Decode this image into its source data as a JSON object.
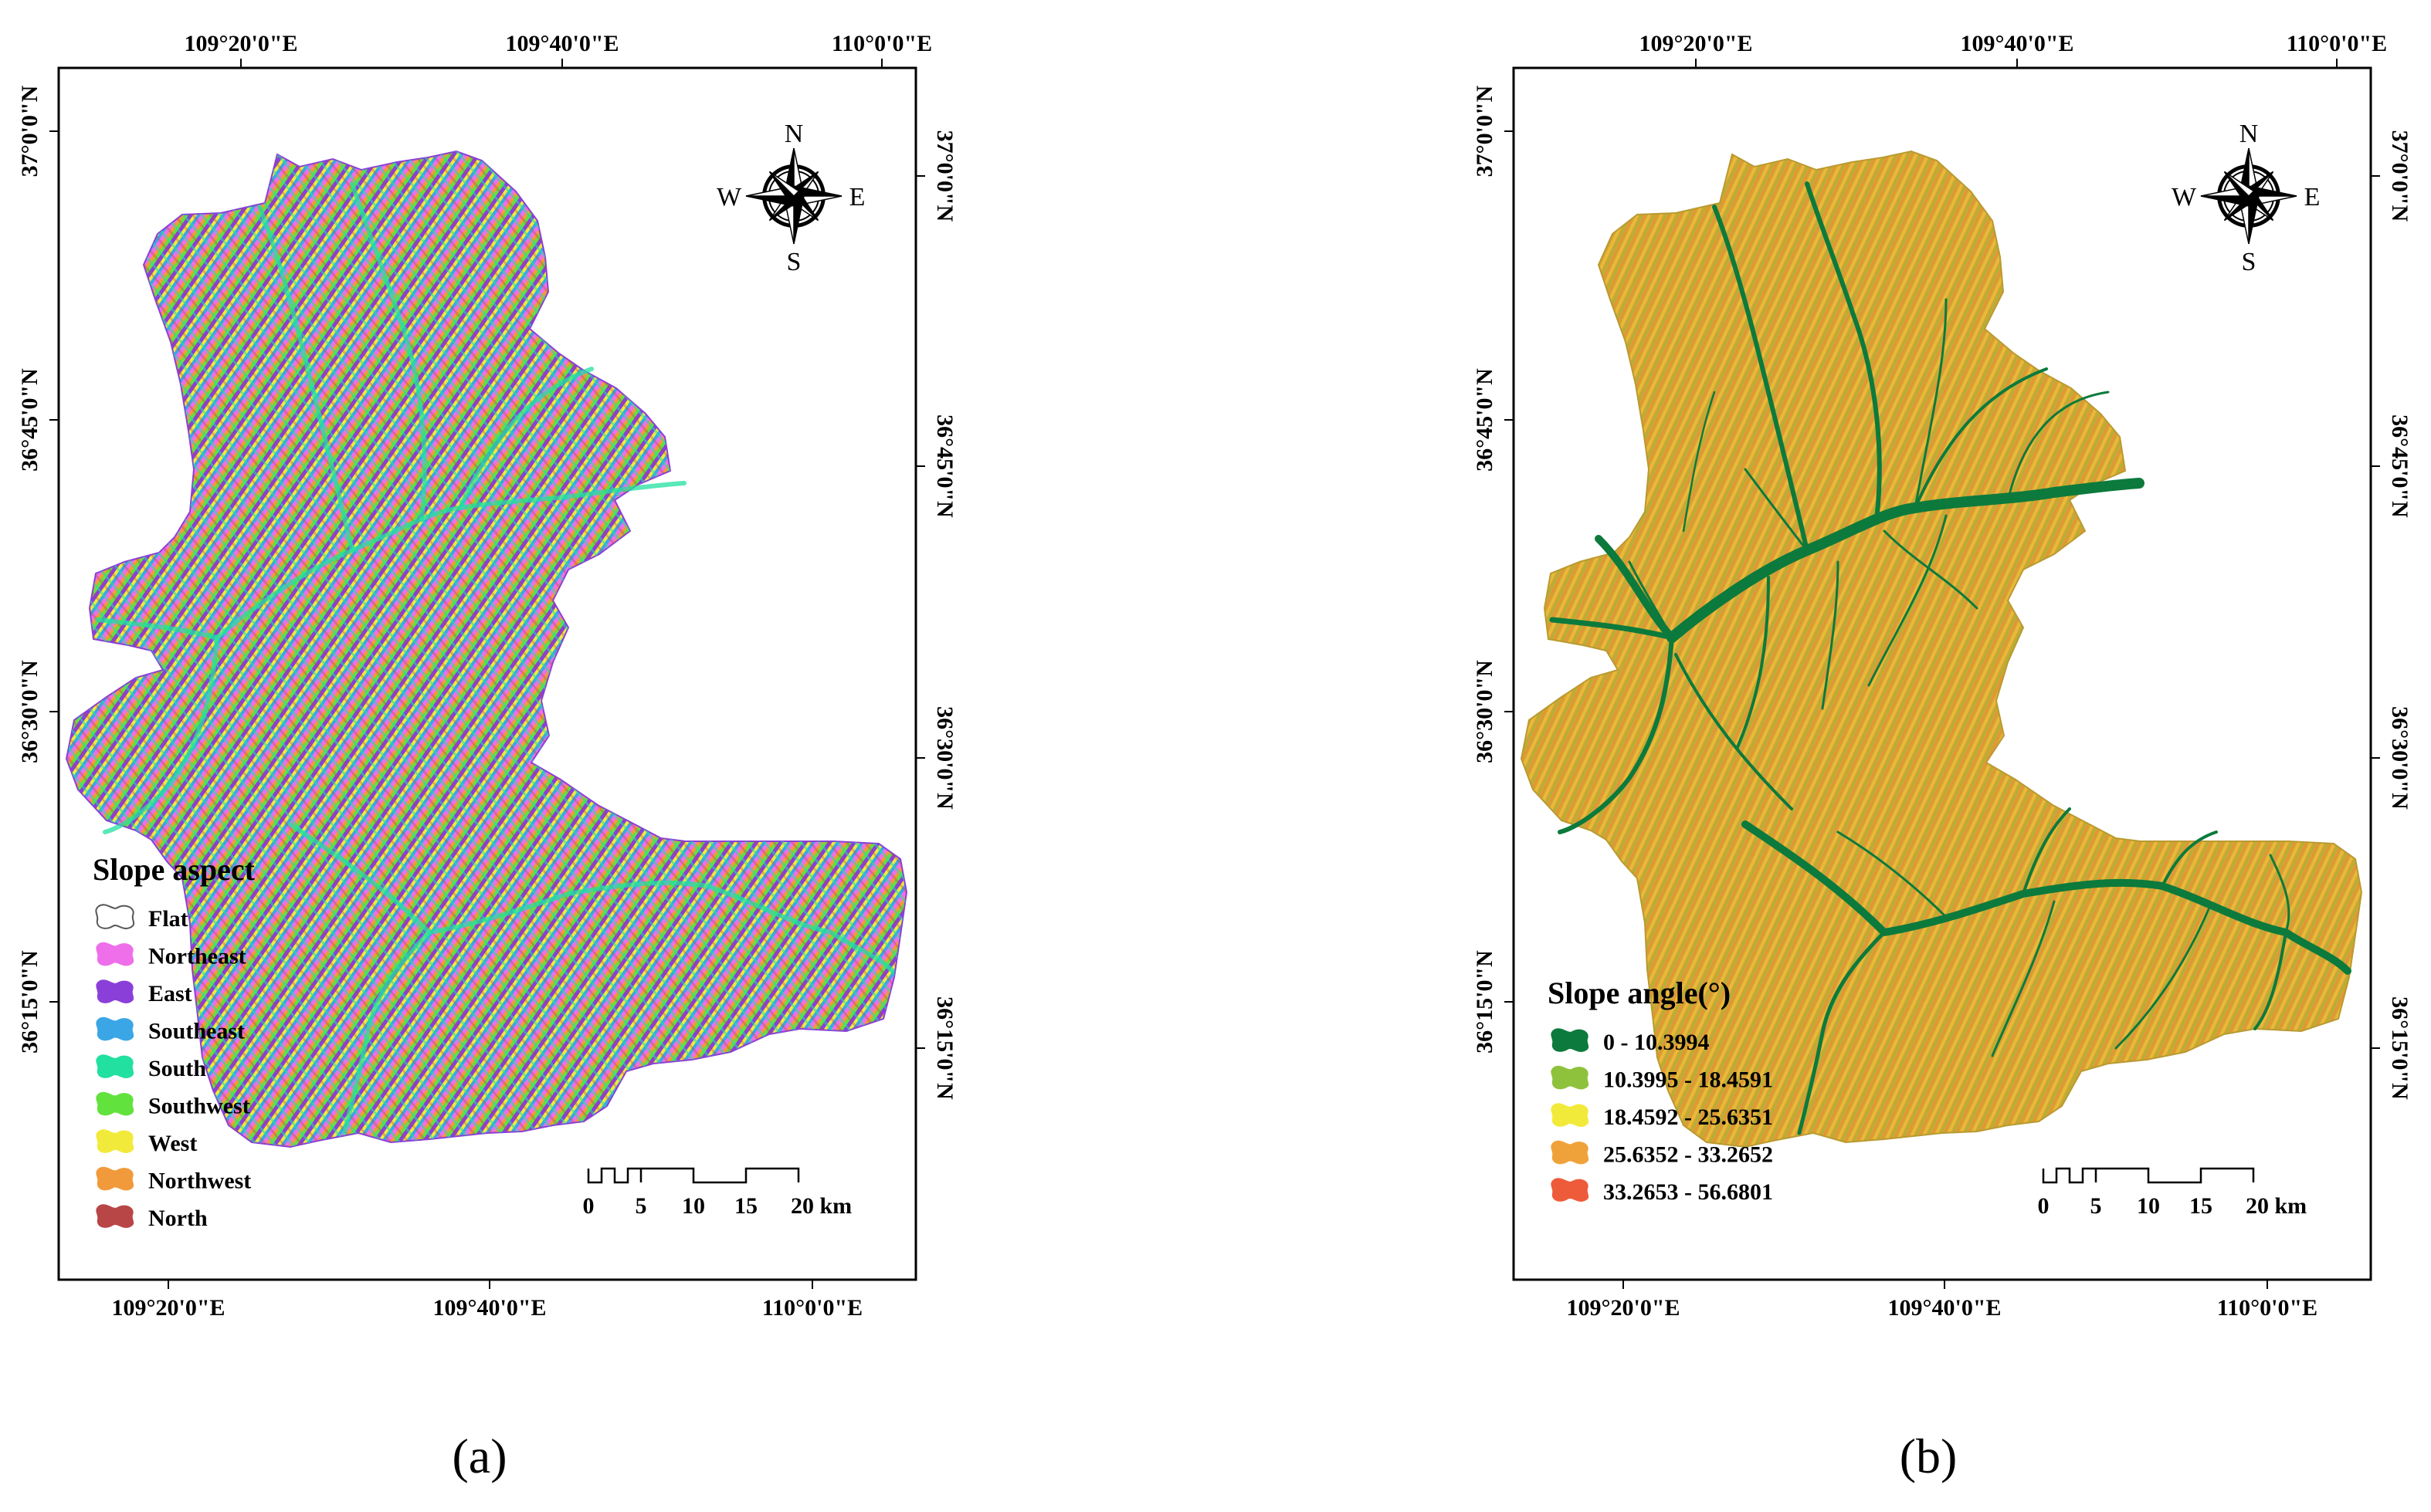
{
  "panels": [
    {
      "id": "a",
      "caption": "(a)",
      "top_labels": [
        "109°20'0\"E",
        "109°40'0\"E",
        "110°0'0\"E"
      ],
      "bottom_labels": [
        "109°20'0\"E",
        "109°40'0\"E",
        "110°0'0\"E"
      ],
      "left_labels": [
        "37°0'0\"N",
        "36°45'0\"N",
        "36°30'0\"N",
        "36°15'0\"N"
      ],
      "right_labels": [
        "37°0'0\"N",
        "36°45'0\"N",
        "36°30'0\"N",
        "36°15'0\"N"
      ],
      "compass": {
        "n": "N",
        "s": "S",
        "e": "E",
        "w": "W"
      },
      "scale": {
        "ticks": [
          "0",
          "5",
          "10",
          "15",
          "20 km"
        ]
      },
      "legend": {
        "title": "Slope aspect",
        "items": [
          {
            "label": "Flat",
            "color": "#ffffff"
          },
          {
            "label": "Northeast",
            "color": "#ee6fe9"
          },
          {
            "label": "East",
            "color": "#8a3fd9"
          },
          {
            "label": "Southeast",
            "color": "#3aa6e6"
          },
          {
            "label": "South",
            "color": "#21e0a0"
          },
          {
            "label": "Southwest",
            "color": "#62e23c"
          },
          {
            "label": "West",
            "color": "#f1ea3a"
          },
          {
            "label": "Northwest",
            "color": "#f19a3b"
          },
          {
            "label": "North",
            "color": "#b84646"
          }
        ]
      }
    },
    {
      "id": "b",
      "caption": "(b)",
      "top_labels": [
        "109°20'0\"E",
        "109°40'0\"E",
        "110°0'0\"E"
      ],
      "bottom_labels": [
        "109°20'0\"E",
        "109°40'0\"E",
        "110°0'0\"E"
      ],
      "left_labels": [
        "37°0'0\"N",
        "36°45'0\"N",
        "36°30'0\"N",
        "36°15'0\"N"
      ],
      "right_labels": [
        "37°0'0\"N",
        "36°45'0\"N",
        "36°30'0\"N",
        "36°15'0\"N"
      ],
      "compass": {
        "n": "N",
        "s": "S",
        "e": "E",
        "w": "W"
      },
      "scale": {
        "ticks": [
          "0",
          "5",
          "10",
          "15",
          "20 km"
        ]
      },
      "legend": {
        "title": "Slope angle(°)",
        "items": [
          {
            "label": "0 - 10.3994",
            "color": "#0c7a3c"
          },
          {
            "label": "10.3995 - 18.4591",
            "color": "#8ec23c"
          },
          {
            "label": "18.4592 - 25.6351",
            "color": "#f2ea3a"
          },
          {
            "label": "25.6352 - 33.2652",
            "color": "#f0a23a"
          },
          {
            "label": "33.2653 - 56.6801",
            "color": "#ee5b3a"
          }
        ]
      }
    }
  ]
}
